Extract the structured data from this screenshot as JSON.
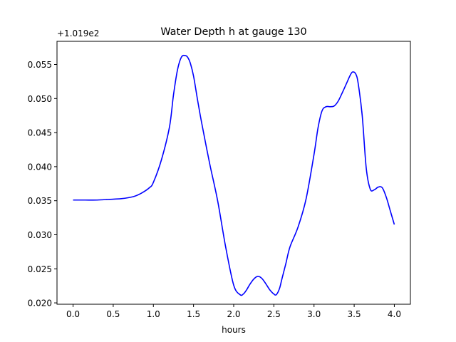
{
  "chart_data": {
    "type": "line",
    "title": "Water Depth h at gauge 130",
    "xlabel": "hours",
    "ylabel": "",
    "y_offset_label": "+1.019e2",
    "xlim": [
      -0.2,
      4.2
    ],
    "ylim": [
      0.0198,
      0.0584
    ],
    "xticks": [
      0.0,
      0.5,
      1.0,
      1.5,
      2.0,
      2.5,
      3.0,
      3.5,
      4.0
    ],
    "xtick_labels": [
      "0.0",
      "0.5",
      "1.0",
      "1.5",
      "2.0",
      "2.5",
      "3.0",
      "3.5",
      "4.0"
    ],
    "yticks": [
      0.02,
      0.025,
      0.03,
      0.035,
      0.04,
      0.045,
      0.05,
      0.055
    ],
    "ytick_labels": [
      "0.020",
      "0.025",
      "0.030",
      "0.035",
      "0.040",
      "0.045",
      "0.050",
      "0.055"
    ],
    "grid": false,
    "legend": "none",
    "series": [
      {
        "color": "#0000ff",
        "x": [
          0.0,
          0.15,
          0.3,
          0.45,
          0.6,
          0.75,
          0.85,
          0.95,
          1.0,
          1.1,
          1.2,
          1.25,
          1.3,
          1.35,
          1.4,
          1.43,
          1.46,
          1.5,
          1.55,
          1.6,
          1.7,
          1.8,
          1.9,
          2.0,
          2.08,
          2.12,
          2.16,
          2.2,
          2.25,
          2.3,
          2.35,
          2.4,
          2.45,
          2.5,
          2.53,
          2.57,
          2.6,
          2.65,
          2.7,
          2.8,
          2.9,
          3.0,
          3.05,
          3.1,
          3.15,
          3.2,
          3.25,
          3.3,
          3.35,
          3.4,
          3.45,
          3.48,
          3.52,
          3.55,
          3.6,
          3.65,
          3.7,
          3.75,
          3.8,
          3.85,
          3.9,
          3.95,
          4.0
        ],
        "y": [
          0.0351,
          0.0351,
          0.0351,
          0.0352,
          0.0353,
          0.0356,
          0.0361,
          0.0369,
          0.0377,
          0.041,
          0.0458,
          0.0505,
          0.0542,
          0.0561,
          0.0563,
          0.056,
          0.0552,
          0.0533,
          0.0498,
          0.0465,
          0.0405,
          0.035,
          0.0282,
          0.0226,
          0.0212,
          0.0213,
          0.0219,
          0.0227,
          0.0235,
          0.0239,
          0.0236,
          0.0228,
          0.0219,
          0.0213,
          0.0212,
          0.0221,
          0.0235,
          0.0258,
          0.0282,
          0.0311,
          0.0352,
          0.0418,
          0.0457,
          0.0482,
          0.0488,
          0.0488,
          0.0489,
          0.0496,
          0.0508,
          0.0521,
          0.0534,
          0.0539,
          0.0536,
          0.0522,
          0.0475,
          0.0398,
          0.0367,
          0.0366,
          0.037,
          0.0369,
          0.0355,
          0.0335,
          0.0315
        ]
      }
    ]
  }
}
